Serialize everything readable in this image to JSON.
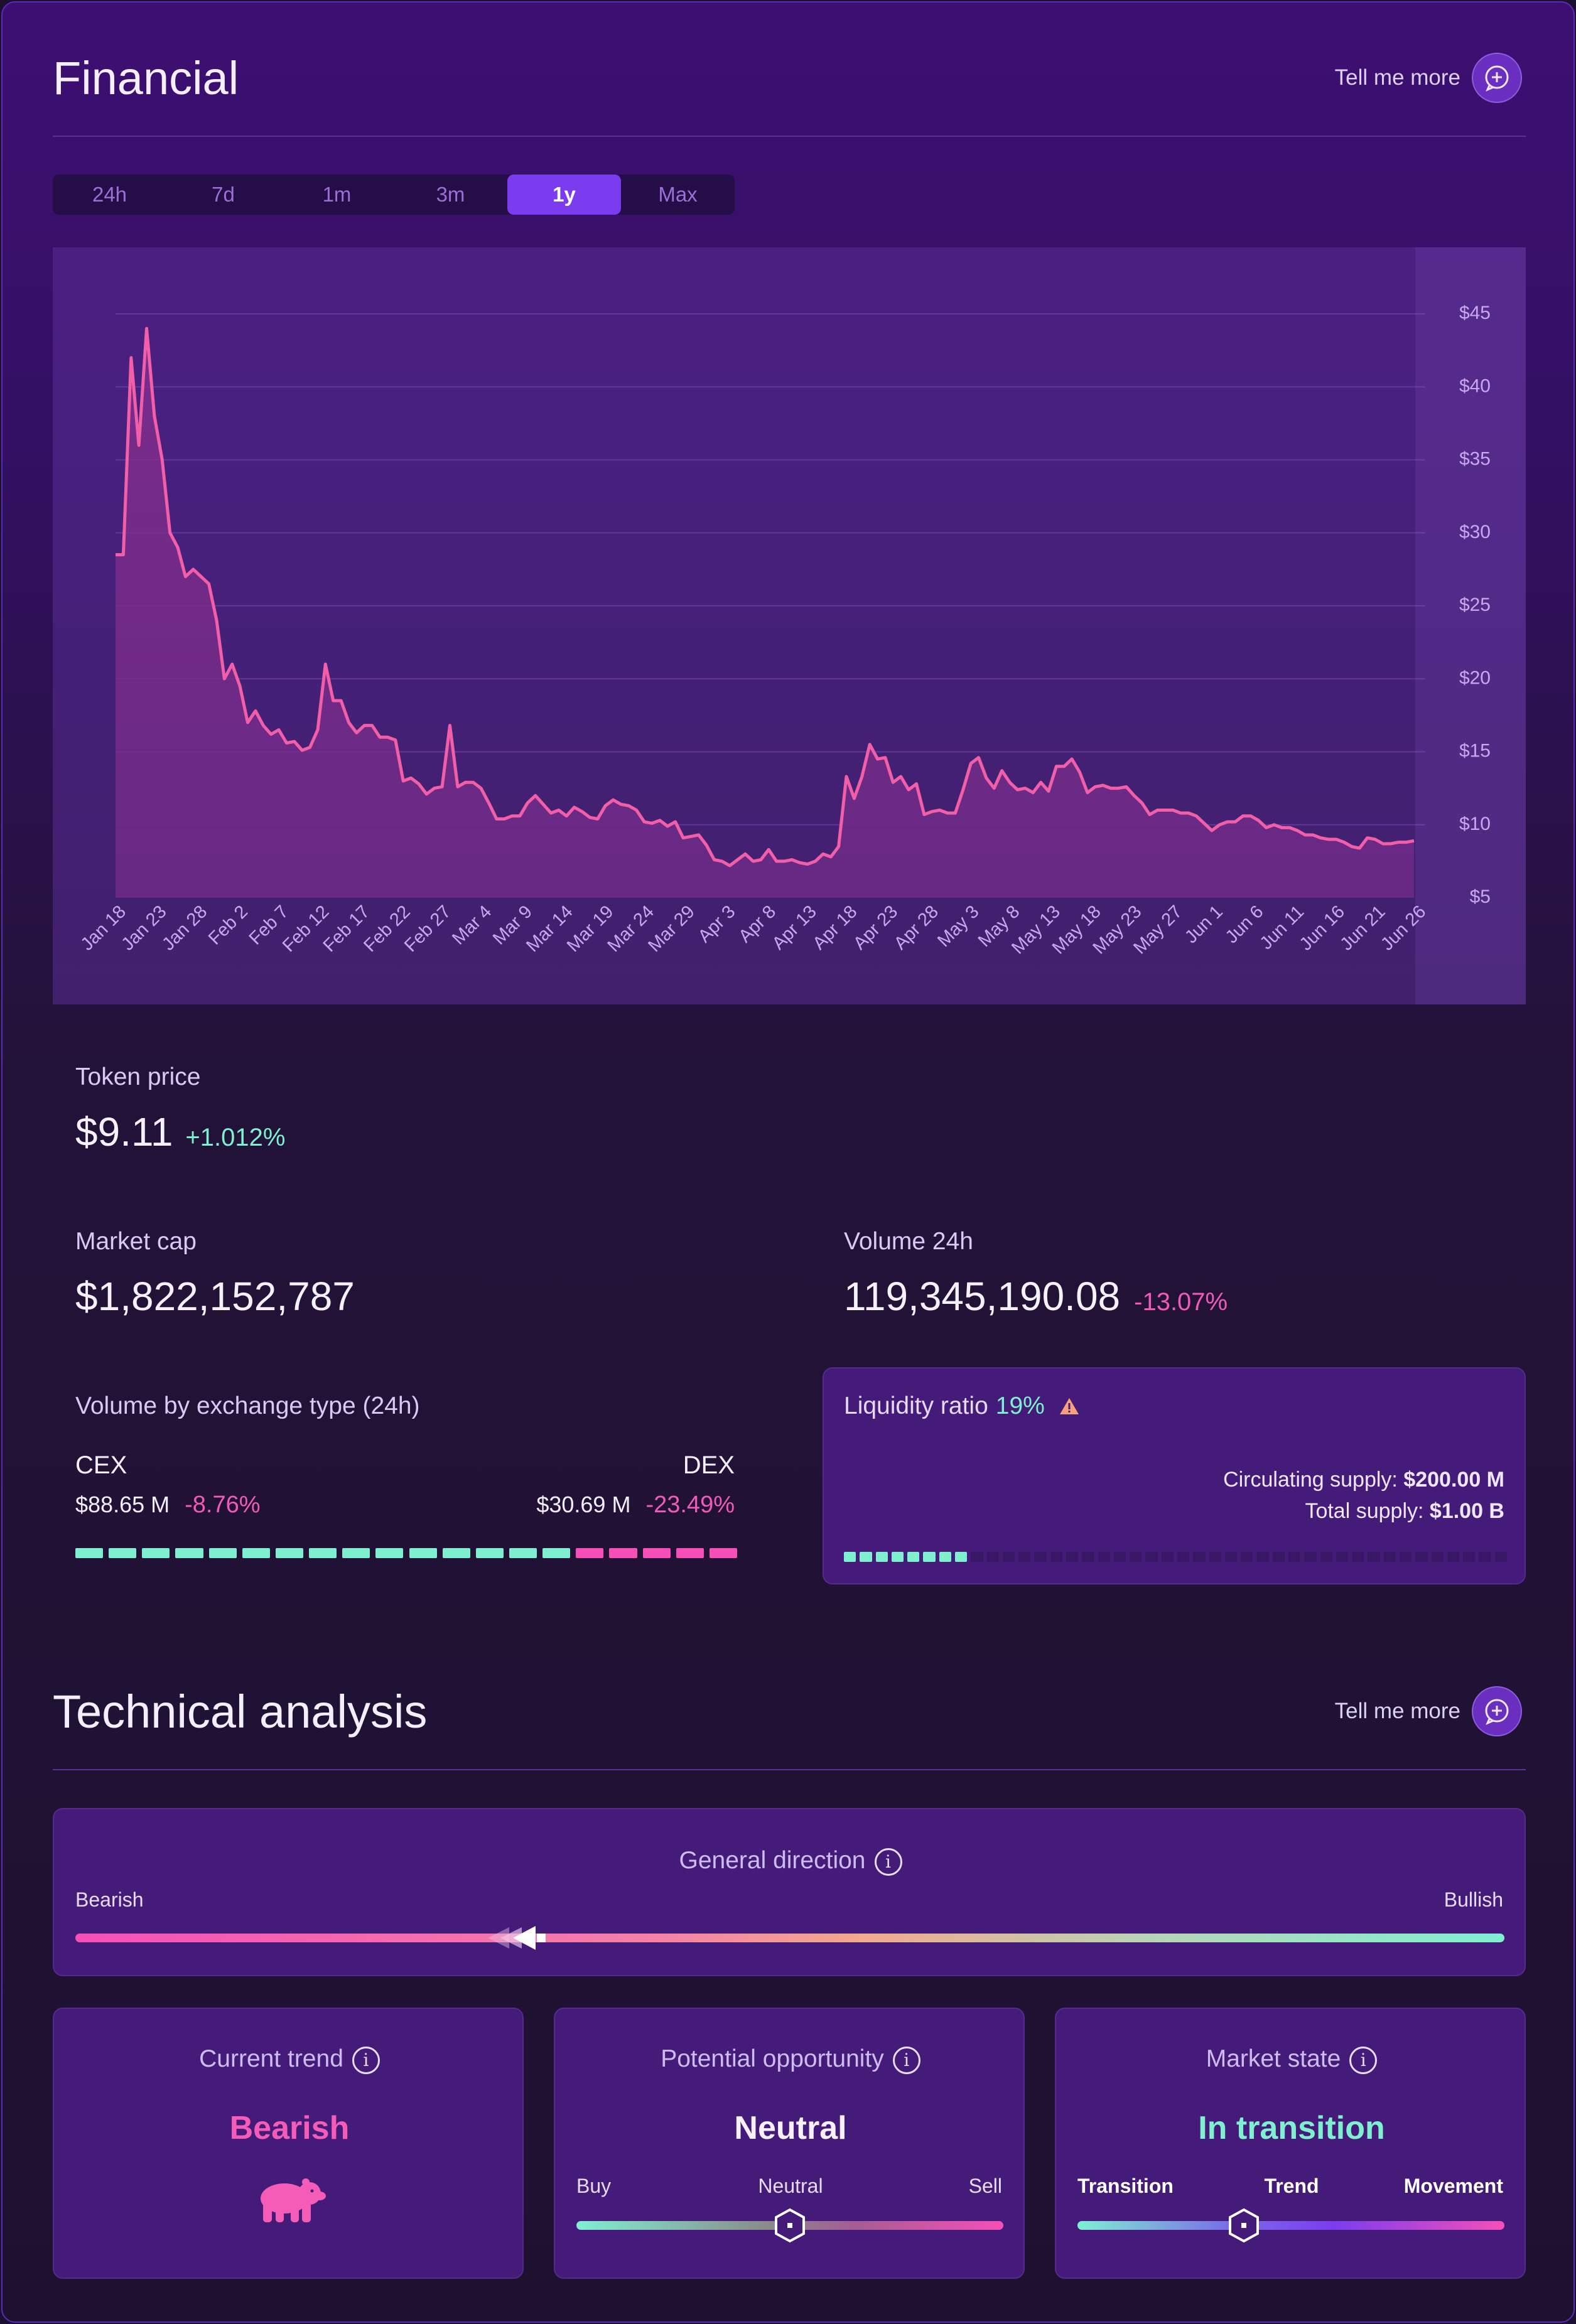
{
  "financial": {
    "title": "Financial",
    "tell_more": "Tell me more",
    "tabs": [
      "24h",
      "7d",
      "1m",
      "3m",
      "1y",
      "Max"
    ],
    "active_tab": "1y"
  },
  "chart_data": {
    "type": "area",
    "y_ticks": [
      "$45",
      "$40",
      "$35",
      "$30",
      "$25",
      "$20",
      "$15",
      "$10",
      "$5"
    ],
    "ylim": [
      5,
      45
    ],
    "x_tick_labels": [
      "Jan 18",
      "Jan 23",
      "Jan 28",
      "Feb 2",
      "Feb 7",
      "Feb 12",
      "Feb 17",
      "Feb 22",
      "Feb 27",
      "Mar 4",
      "Mar 9",
      "Mar 14",
      "Mar 19",
      "Mar 24",
      "Mar 29",
      "Apr 3",
      "Apr 8",
      "Apr 13",
      "Apr 18",
      "Apr 23",
      "Apr 28",
      "May 3",
      "May 8",
      "May 13",
      "May 18",
      "May 23",
      "May 27",
      "Jun 1",
      "Jun 6",
      "Jun 11",
      "Jun 16",
      "Jun 21",
      "Jun 26"
    ],
    "grid": true,
    "color": "#f25fa8",
    "values": [
      28.5,
      28.5,
      42,
      36,
      44,
      38,
      35,
      30,
      29,
      27,
      27.5,
      27,
      26.5,
      24,
      20,
      21,
      19.5,
      17,
      17.8,
      16.8,
      16.2,
      16.5,
      15.6,
      15.7,
      15.1,
      15.3,
      16.5,
      21,
      18.5,
      18.5,
      17,
      16.3,
      16.8,
      16.8,
      16,
      16,
      15.8,
      13,
      13.2,
      12.8,
      12.1,
      12.5,
      12.6,
      16.8,
      12.6,
      12.9,
      12.9,
      12.5,
      11.5,
      10.4,
      10.4,
      10.6,
      10.6,
      11.5,
      12,
      11.4,
      10.8,
      11,
      10.6,
      11.2,
      10.9,
      10.5,
      10.4,
      11.3,
      11.7,
      11.4,
      11.3,
      11,
      10.2,
      10.1,
      10.3,
      9.9,
      10.2,
      9.1,
      9.2,
      9.3,
      8.6,
      7.6,
      7.5,
      7.2,
      7.6,
      8,
      7.5,
      7.6,
      8.3,
      7.5,
      7.5,
      7.6,
      7.4,
      7.3,
      7.5,
      8,
      7.8,
      8.5,
      13.3,
      11.8,
      13.3,
      15.5,
      14.5,
      14.6,
      12.9,
      13.3,
      12.4,
      12.8,
      10.7,
      10.9,
      11,
      10.8,
      10.8,
      12.4,
      14.2,
      14.6,
      13.2,
      12.5,
      13.7,
      12.9,
      12.4,
      12.5,
      12.2,
      12.9,
      12.3,
      14,
      14,
      14.5,
      13.6,
      12.2,
      12.6,
      12.7,
      12.5,
      12.5,
      12.6,
      12,
      11.5,
      10.7,
      11,
      11,
      11,
      10.8,
      10.8,
      10.6,
      10.1,
      9.6,
      10,
      10.2,
      10.2,
      10.6,
      10.6,
      10.3,
      9.8,
      10,
      9.8,
      9.8,
      9.6,
      9.3,
      9.3,
      9.1,
      9,
      9,
      8.8,
      8.5,
      8.4,
      9.1,
      9,
      8.7,
      8.7,
      8.8,
      8.8,
      8.9
    ]
  },
  "stats": {
    "token_price_label": "Token price",
    "token_price": "$9.11",
    "token_change": "+1.012%",
    "market_cap_label": "Market cap",
    "market_cap": "$1,822,152,787",
    "volume_label": "Volume 24h",
    "volume": "119,345,190.08",
    "volume_change": "-13.07%"
  },
  "exchange": {
    "title": "Volume by exchange type (24h)",
    "cex_label": "CEX",
    "cex_value": "$88.65 M",
    "cex_change": "-8.76%",
    "dex_label": "DEX",
    "dex_value": "$30.69 M",
    "dex_change": "-23.49%",
    "cex_share": 0.74
  },
  "liquidity": {
    "label": "Liquidity ratio",
    "ratio": "19%",
    "ratio_value": 0.19,
    "circ_label": "Circulating supply:",
    "circ_value": "$200.00 M",
    "total_label": "Total supply:",
    "total_value": "$1.00 B",
    "warning_icon": "warning-triangle-icon"
  },
  "technical": {
    "title": "Technical analysis",
    "tell_more": "Tell me more",
    "general_direction": "General direction",
    "bearish": "Bearish",
    "bullish": "Bullish",
    "direction_level": 0.33,
    "current_trend_title": "Current trend",
    "current_trend_value": "Bearish",
    "trend_icon": "bear-icon",
    "opportunity_title": "Potential opportunity",
    "opportunity_value": "Neutral",
    "buy": "Buy",
    "neutral": "Neutral",
    "sell": "Sell",
    "opportunity_level": 0.5,
    "market_state_title": "Market state",
    "market_state_value": "In transition",
    "transition": "Transition",
    "trend": "Trend",
    "movement": "Movement",
    "market_state_level": 0.39
  },
  "colors": {
    "accent": "#7b3cf0",
    "positive": "#7ff0cf",
    "negative": "#f05ab8",
    "warning": "#f5a27a"
  }
}
